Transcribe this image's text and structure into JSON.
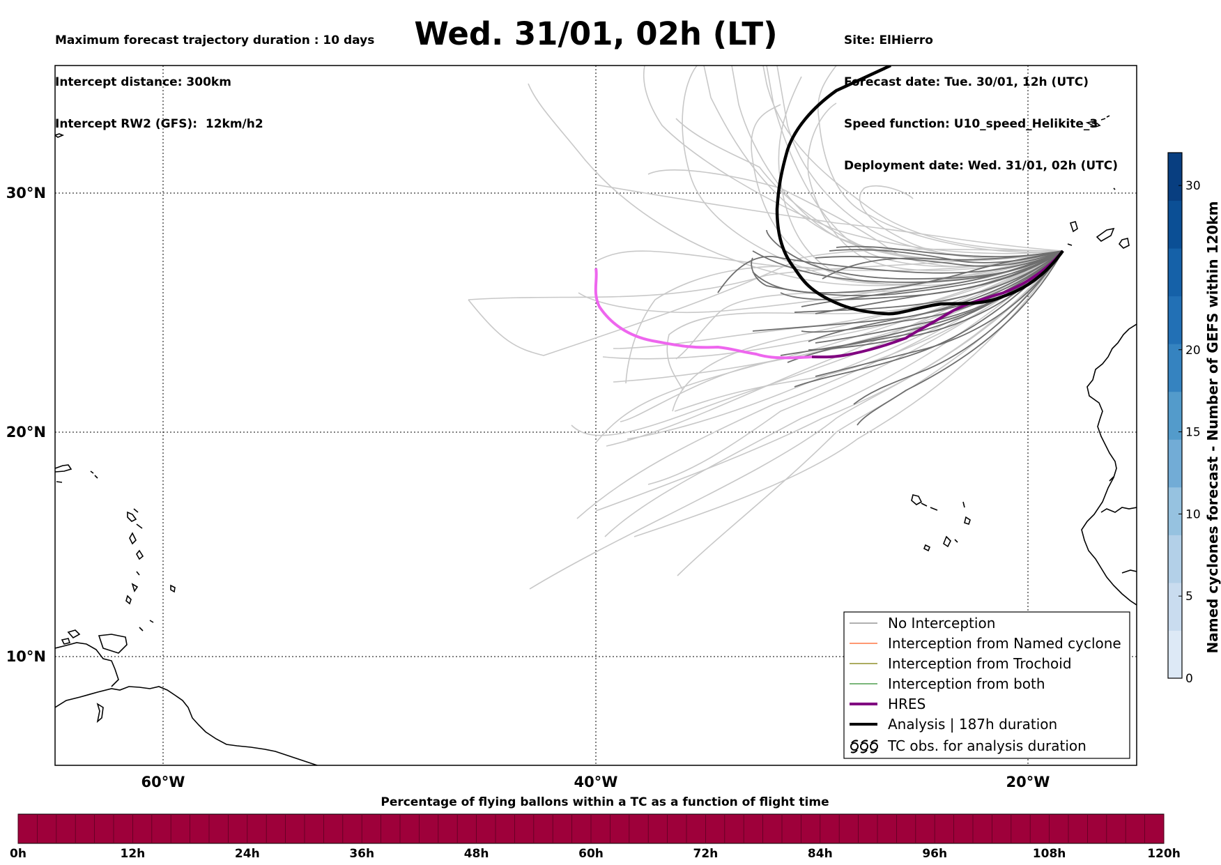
{
  "header": {
    "left_lines": [
      "Maximum forecast trajectory duration : 10 days",
      "Intercept distance: 300km",
      "Intercept RW2 (GFS):  12km/h2"
    ],
    "title": "Wed. 31/01, 02h (LT)",
    "right_lines": [
      "Site: ElHierro",
      "Forecast date: Tue. 30/01, 12h (UTC)",
      "Speed function: U10_speed_Helikite_3",
      "Deployment date: Wed. 31/01, 02h (UTC)"
    ]
  },
  "map": {
    "lon_range": [
      -65,
      15
    ],
    "lat_range": [
      5.4,
      34.8
    ],
    "lon_labels": [
      "60°W",
      "40°W",
      "20°W"
    ],
    "lat_labels": [
      "30°N",
      "20°N",
      "10°N"
    ],
    "grid": "dotted",
    "colors": {
      "light_tracks": "#c8c8c8",
      "dark_tracks": "#6e6e6e",
      "hres": "#800080",
      "hres_faded": "#ee66ee",
      "analysis": "#000000"
    }
  },
  "legend": {
    "placement": "bottom-right",
    "items": [
      {
        "label": "No Interception",
        "color": "#808080",
        "icon": "thin-line"
      },
      {
        "label": "Interception from Named cyclone",
        "color": "#ff5a1e",
        "icon": "thin-line"
      },
      {
        "label": "Interception from Trochoid",
        "color": "#7a7a00",
        "icon": "thin-line"
      },
      {
        "label": "Interception from both",
        "color": "#2a8a2a",
        "icon": "thin-line"
      },
      {
        "label": "HRES",
        "color": "#800080",
        "icon": "thick-line"
      },
      {
        "label": "Analysis | 187h duration",
        "color": "#000000",
        "icon": "thick-line"
      },
      {
        "label": "TC obs. for analysis duration",
        "color": "#000000",
        "icon": "cyclone-symbols"
      }
    ]
  },
  "colorbar": {
    "label": "Named cyclones forecast - Number of GEFS within 120km",
    "ticks": [
      "0",
      "5",
      "10",
      "15",
      "20",
      "30"
    ],
    "tick_values": [
      0,
      5,
      10,
      15,
      20,
      30
    ],
    "range": [
      0,
      32
    ],
    "colors": [
      "#dde9f6",
      "#c9dcef",
      "#b3d0e8",
      "#96c2e0",
      "#72acd6",
      "#539bcb",
      "#3583c0",
      "#2270b5",
      "#1561a8",
      "#0b4f95",
      "#083e80"
    ]
  },
  "bottom_bar": {
    "title": "Percentage of flying ballons within a TC as a function of flight time",
    "ticks": [
      "0h",
      "12h",
      "24h",
      "36h",
      "48h",
      "60h",
      "72h",
      "84h",
      "96h",
      "108h",
      "120h"
    ],
    "color": "#9e003a",
    "percent_values": [
      0,
      0,
      0,
      0,
      0,
      0,
      0,
      0,
      0,
      0,
      0
    ]
  }
}
